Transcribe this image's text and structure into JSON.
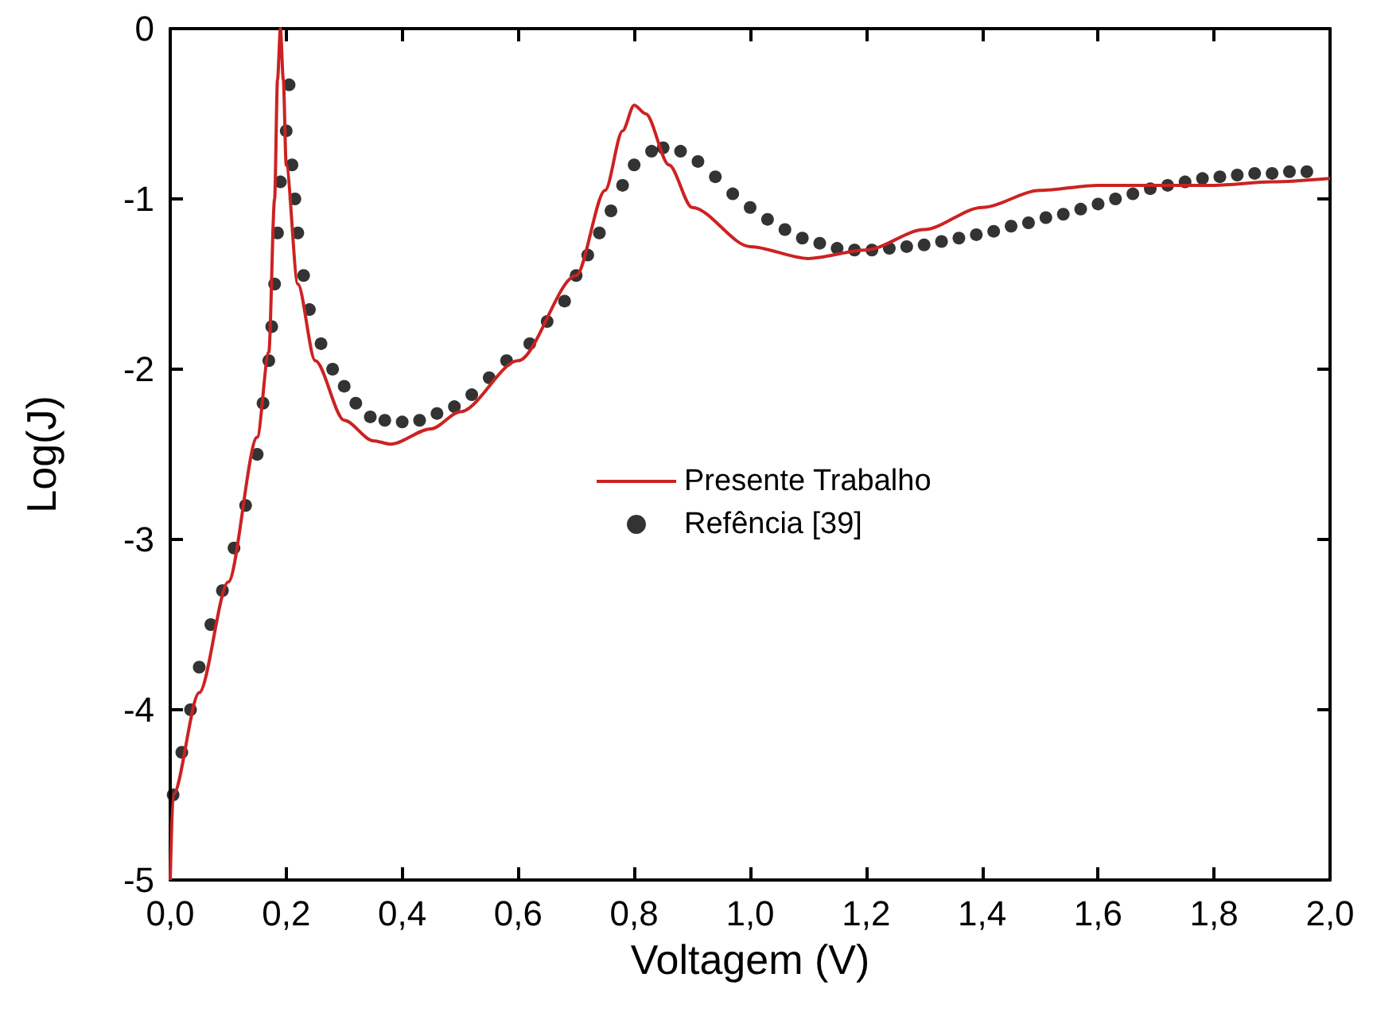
{
  "chart_data": {
    "type": "line",
    "xlabel": "Voltagem (V)",
    "ylabel": "Log(J)",
    "xlim": [
      0,
      2
    ],
    "ylim": [
      -5,
      0
    ],
    "xticks": [
      {
        "value": 0,
        "label": "0,0"
      },
      {
        "value": 0.2,
        "label": "0,2"
      },
      {
        "value": 0.4,
        "label": "0,4"
      },
      {
        "value": 0.6,
        "label": "0,6"
      },
      {
        "value": 0.8,
        "label": "0,8"
      },
      {
        "value": 1,
        "label": "1,0"
      },
      {
        "value": 1.2,
        "label": "1,2"
      },
      {
        "value": 1.4,
        "label": "1,4"
      },
      {
        "value": 1.6,
        "label": "1,6"
      },
      {
        "value": 1.8,
        "label": "1,8"
      },
      {
        "value": 2,
        "label": "2,0"
      }
    ],
    "yticks": [
      -5,
      -4,
      -3,
      -2,
      -1,
      0
    ],
    "grid": false,
    "legend": "center",
    "series": [
      {
        "name": "Presente Trabalho",
        "color": "#cc2222",
        "marker": "none",
        "line_style": "solid",
        "x": [
          0,
          0.005,
          0.05,
          0.1,
          0.15,
          0.17,
          0.18,
          0.185,
          0.19,
          0.195,
          0.2,
          0.22,
          0.25,
          0.3,
          0.35,
          0.38,
          0.45,
          0.5,
          0.6,
          0.7,
          0.75,
          0.78,
          0.8,
          0.82,
          0.86,
          0.9,
          1.0,
          1.1,
          1.2,
          1.3,
          1.4,
          1.5,
          1.6,
          1.7,
          1.8,
          1.9,
          2.0
        ],
        "values": [
          -5,
          -4.5,
          -3.9,
          -3.25,
          -2.4,
          -1.9,
          -1.0,
          -0.3,
          0,
          -0.3,
          -0.8,
          -1.5,
          -1.95,
          -2.3,
          -2.42,
          -2.44,
          -2.35,
          -2.25,
          -1.95,
          -1.45,
          -0.95,
          -0.6,
          -0.45,
          -0.5,
          -0.8,
          -1.05,
          -1.28,
          -1.35,
          -1.3,
          -1.18,
          -1.05,
          -0.95,
          -0.92,
          -0.92,
          -0.92,
          -0.9,
          -0.88
        ]
      },
      {
        "name": "Refência [39]",
        "type": "scatter",
        "color": "#000000",
        "marker": "circle",
        "x": [
          0.005,
          0.02,
          0.035,
          0.05,
          0.07,
          0.09,
          0.11,
          0.13,
          0.15,
          0.16,
          0.17,
          0.175,
          0.18,
          0.185,
          0.19,
          0.2,
          0.205,
          0.21,
          0.215,
          0.22,
          0.23,
          0.24,
          0.26,
          0.28,
          0.3,
          0.32,
          0.345,
          0.37,
          0.4,
          0.43,
          0.46,
          0.49,
          0.52,
          0.55,
          0.58,
          0.62,
          0.65,
          0.68,
          0.7,
          0.72,
          0.74,
          0.76,
          0.78,
          0.8,
          0.83,
          0.85,
          0.88,
          0.91,
          0.94,
          0.97,
          1.0,
          1.03,
          1.06,
          1.09,
          1.12,
          1.15,
          1.18,
          1.21,
          1.24,
          1.27,
          1.3,
          1.33,
          1.36,
          1.39,
          1.42,
          1.45,
          1.48,
          1.51,
          1.54,
          1.57,
          1.6,
          1.63,
          1.66,
          1.69,
          1.72,
          1.75,
          1.78,
          1.81,
          1.84,
          1.87,
          1.9,
          1.93,
          1.96
        ],
        "values": [
          -4.5,
          -4.25,
          -4.0,
          -3.75,
          -3.5,
          -3.3,
          -3.05,
          -2.8,
          -2.5,
          -2.2,
          -1.95,
          -1.75,
          -1.5,
          -1.2,
          -0.9,
          -0.6,
          -0.33,
          -0.8,
          -1.0,
          -1.2,
          -1.45,
          -1.65,
          -1.85,
          -2.0,
          -2.1,
          -2.2,
          -2.28,
          -2.3,
          -2.31,
          -2.3,
          -2.26,
          -2.22,
          -2.15,
          -2.05,
          -1.95,
          -1.85,
          -1.72,
          -1.6,
          -1.45,
          -1.33,
          -1.2,
          -1.07,
          -0.92,
          -0.8,
          -0.72,
          -0.7,
          -0.72,
          -0.78,
          -0.87,
          -0.97,
          -1.05,
          -1.12,
          -1.18,
          -1.23,
          -1.26,
          -1.29,
          -1.3,
          -1.3,
          -1.29,
          -1.28,
          -1.27,
          -1.25,
          -1.23,
          -1.21,
          -1.19,
          -1.16,
          -1.14,
          -1.11,
          -1.09,
          -1.06,
          -1.03,
          -1.0,
          -0.97,
          -0.94,
          -0.92,
          -0.9,
          -0.88,
          -0.87,
          -0.86,
          -0.85,
          -0.85,
          -0.84,
          -0.84
        ]
      }
    ]
  }
}
